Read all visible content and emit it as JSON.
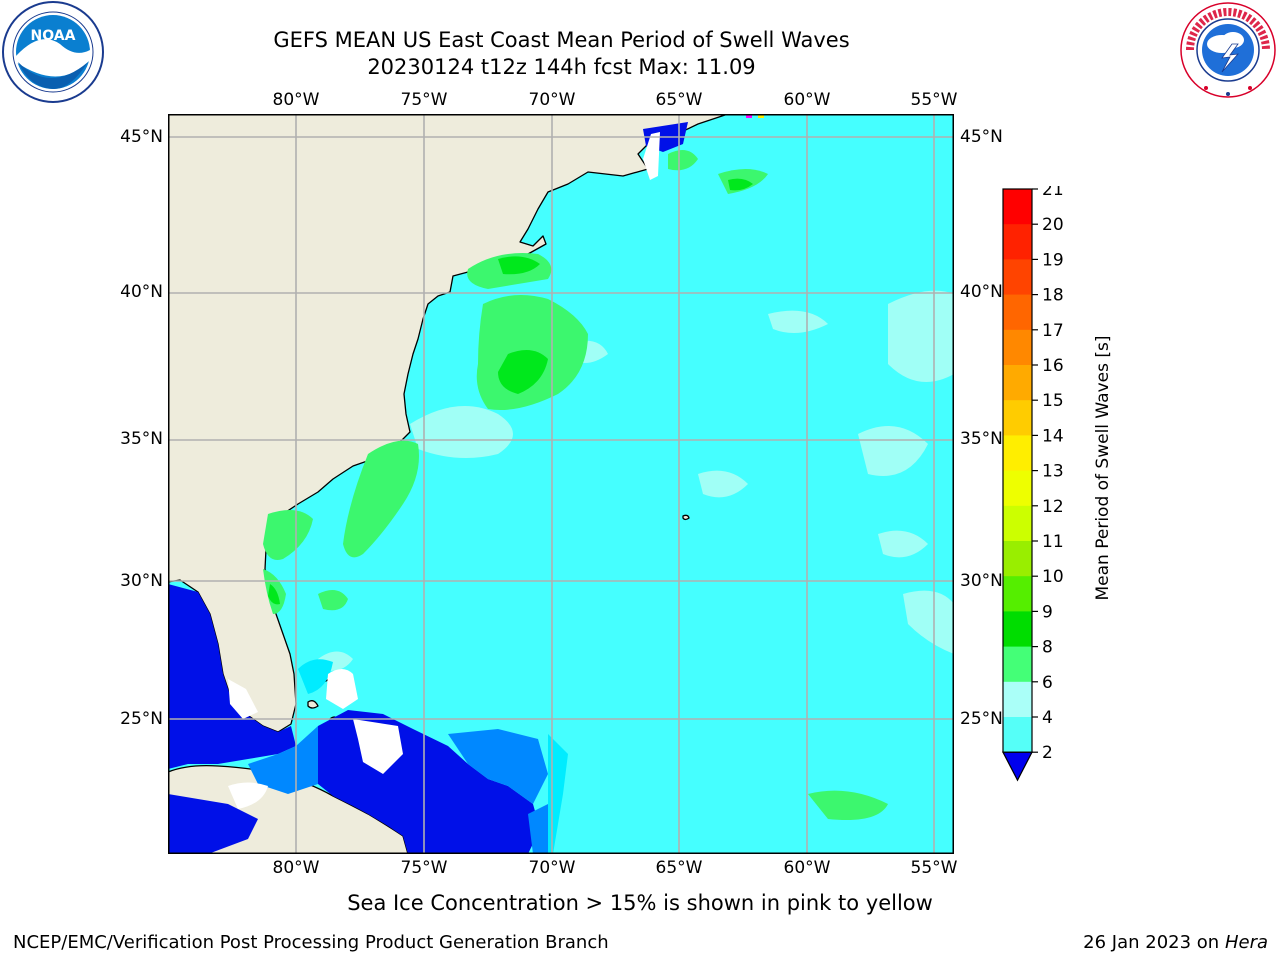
{
  "header": {
    "title_line1": "GEFS MEAN US East Coast Mean Period of Swell Waves",
    "title_line2": "20230124 t12z 144h fcst   Max: 11.09"
  },
  "logos": {
    "left": {
      "name": "NOAA",
      "ring_text": "NATIONAL OCEANIC AND ATMOSPHERIC ADMINISTRATION · U.S. DEPARTMENT OF COMMERCE"
    },
    "right": {
      "name": "NATIONAL WEATHER SERVICE"
    }
  },
  "map": {
    "lon_labels": [
      "80°W",
      "75°W",
      "70°W",
      "65°W",
      "60°W",
      "55°W"
    ],
    "lat_labels": [
      "45°N",
      "40°N",
      "35°N",
      "30°N",
      "25°N"
    ],
    "colors": {
      "land": "#eeecdc",
      "ocean_main": "#45ffff",
      "ocean_light": "#a0fff6",
      "period_4_6": "#00ecff",
      "period_2_4": "#0088ff",
      "period_lt_2": "#0010e8",
      "period_9_10": "#3cf76e",
      "period_10_11": "#00e81c",
      "grid": "#b0b0b0",
      "coast": "#000000"
    }
  },
  "colorbar": {
    "label": "Mean Period of Swell Waves [s]",
    "ticks": [
      "21",
      "20",
      "19",
      "18",
      "17",
      "16",
      "15",
      "14",
      "13",
      "12",
      "11",
      "10",
      "9",
      "8",
      "6",
      "4",
      "2"
    ],
    "band_colors": [
      "#ff0000",
      "#ff2200",
      "#ff4400",
      "#ff6600",
      "#ff8800",
      "#ffaa00",
      "#ffcc00",
      "#ffee00",
      "#eeff00",
      "#ccff00",
      "#99ee00",
      "#55ee00",
      "#00dd00",
      "#44ff77",
      "#aafff8",
      "#55fff8",
      "#00eeff",
      "#0088ff"
    ],
    "under_color": "#0000ee"
  },
  "footer": {
    "ice_note": "Sea Ice Concentration > 15% is shown in pink to yellow",
    "credit": "NCEP/EMC/Verification Post Processing Product Generation Branch",
    "date_prefix": "26 Jan 2023 on ",
    "machine": "Hera"
  }
}
